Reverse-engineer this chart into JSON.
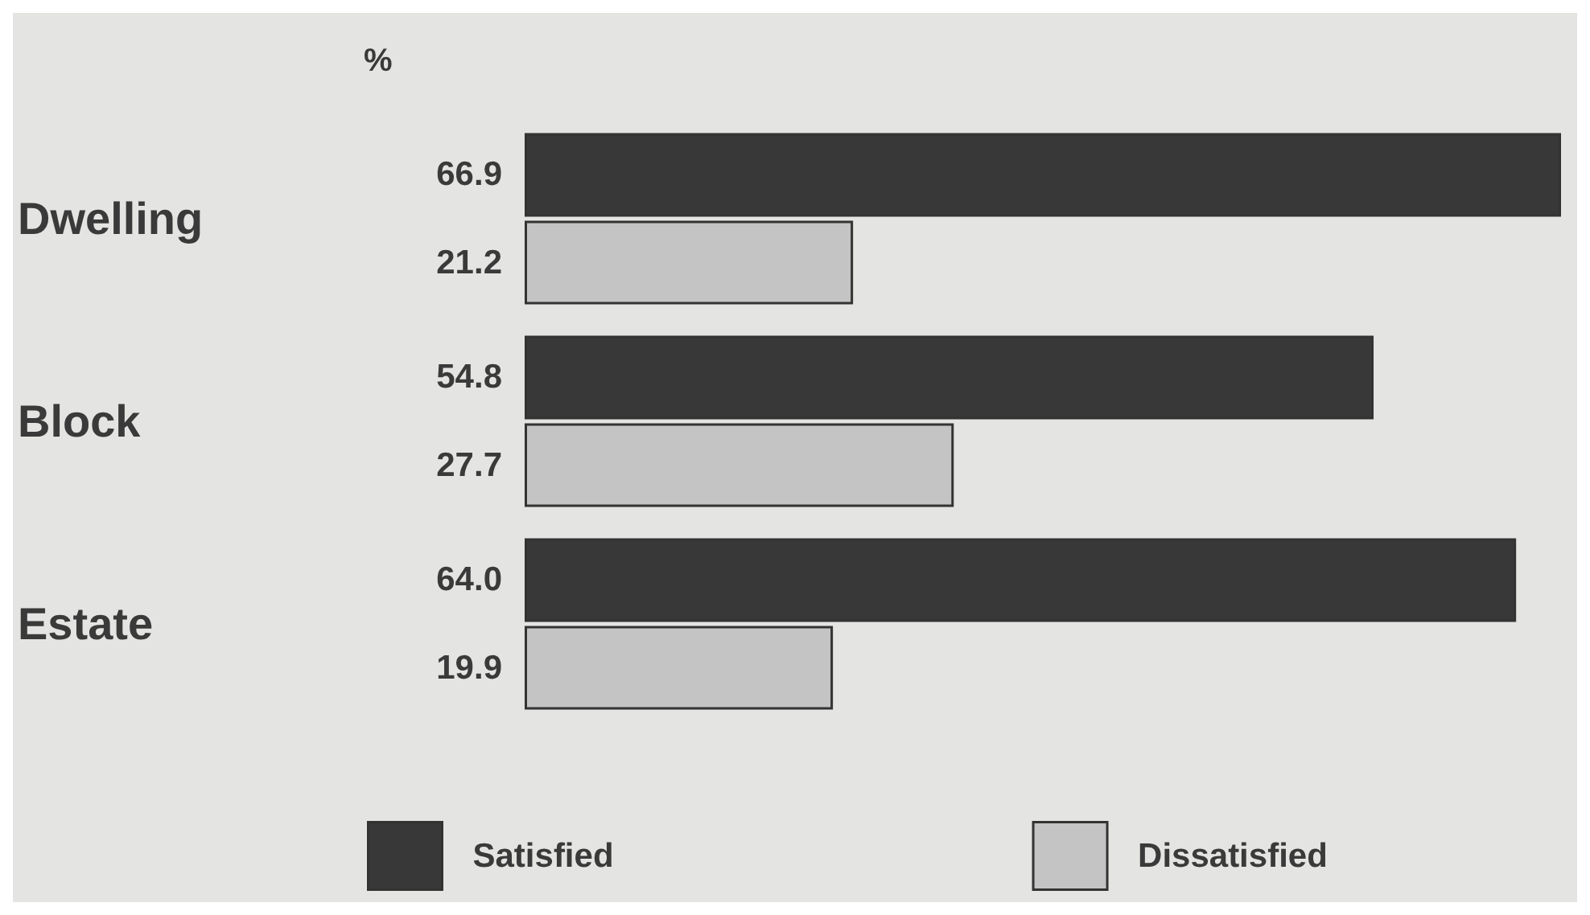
{
  "chart_data": {
    "type": "bar",
    "orientation": "horizontal",
    "xlabel": "%",
    "categories": [
      "Dwelling",
      "Block",
      "Estate"
    ],
    "series": [
      {
        "name": "Satisfied",
        "color": "#383838",
        "values": [
          66.9,
          54.8,
          64.0
        ],
        "value_labels": [
          "66.9",
          "54.8",
          "64.0"
        ]
      },
      {
        "name": "Dissatisfied",
        "color": "#c4c4c4",
        "values": [
          21.2,
          27.7,
          19.9
        ],
        "value_labels": [
          "21.2",
          "27.7",
          "19.9"
        ]
      }
    ],
    "legend": "bottom"
  }
}
